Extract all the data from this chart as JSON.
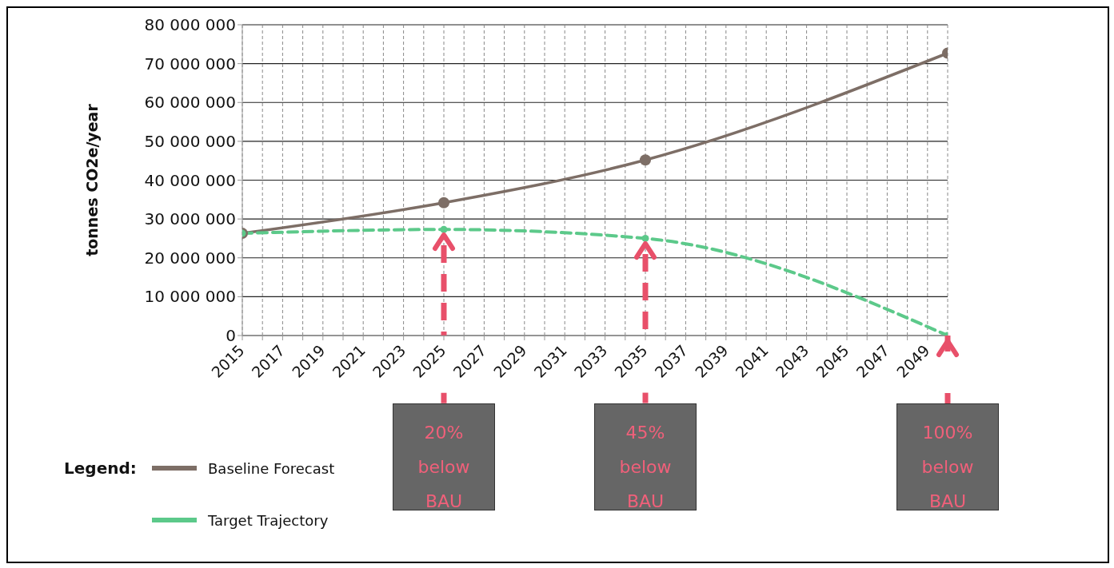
{
  "chart_data": {
    "type": "line",
    "ylabel": "tonnes CO2e/year",
    "legend_title": "Legend:",
    "legend": "bottom left",
    "grid": true,
    "marker": "circle",
    "x": [
      2015,
      2025,
      2035,
      2050
    ],
    "xlim": [
      2015,
      2050
    ],
    "xticks": [
      2015,
      {
        "value": 2016,
        "label": null
      },
      2017,
      {
        "value": 2018,
        "label": null
      },
      2019,
      {
        "value": 2020,
        "label": null
      },
      2021,
      {
        "value": 2022,
        "label": null
      },
      2023,
      {
        "value": 2024,
        "label": null
      },
      2025,
      {
        "value": 2026,
        "label": null
      },
      2027,
      {
        "value": 2028,
        "label": null
      },
      2029,
      {
        "value": 2030,
        "label": null
      },
      2031,
      {
        "value": 2032,
        "label": null
      },
      2033,
      {
        "value": 2034,
        "label": null
      },
      2035,
      {
        "value": 2036,
        "label": null
      },
      2037,
      {
        "value": 2038,
        "label": null
      },
      2039,
      {
        "value": 2040,
        "label": null
      },
      2041,
      {
        "value": 2042,
        "label": null
      },
      2043,
      {
        "value": 2044,
        "label": null
      },
      2045,
      {
        "value": 2046,
        "label": null
      },
      2047,
      {
        "value": 2048,
        "label": null
      },
      2049,
      {
        "value": 2050,
        "label": null
      }
    ],
    "ylim": [
      0,
      80000000
    ],
    "yticks": [
      {
        "value": 0,
        "label": "0"
      },
      {
        "value": 10000000,
        "label": "10 000 000"
      },
      {
        "value": 20000000,
        "label": "20 000 000"
      },
      {
        "value": 30000000,
        "label": "30 000 000"
      },
      {
        "value": 40000000,
        "label": "40 000 000"
      },
      {
        "value": 50000000,
        "label": "50 000 000"
      },
      {
        "value": 60000000,
        "label": "60 000 000"
      },
      {
        "value": 70000000,
        "label": "70 000 000"
      },
      {
        "value": 80000000,
        "label": "80 000 000"
      }
    ],
    "series": [
      {
        "name": "Baseline Forecast",
        "color": "#7d6e66",
        "line_style": "solid",
        "values": [
          26300000,
          34200000,
          45200000,
          72700000
        ]
      },
      {
        "name": "Target Trajectory",
        "color": "#5cc98a",
        "line_style": "dashed",
        "values": [
          26300000,
          27300000,
          25000000,
          0
        ]
      }
    ],
    "annotations": [
      "20% below BAU",
      "45% below BAU",
      "100% below BAU"
    ]
  }
}
